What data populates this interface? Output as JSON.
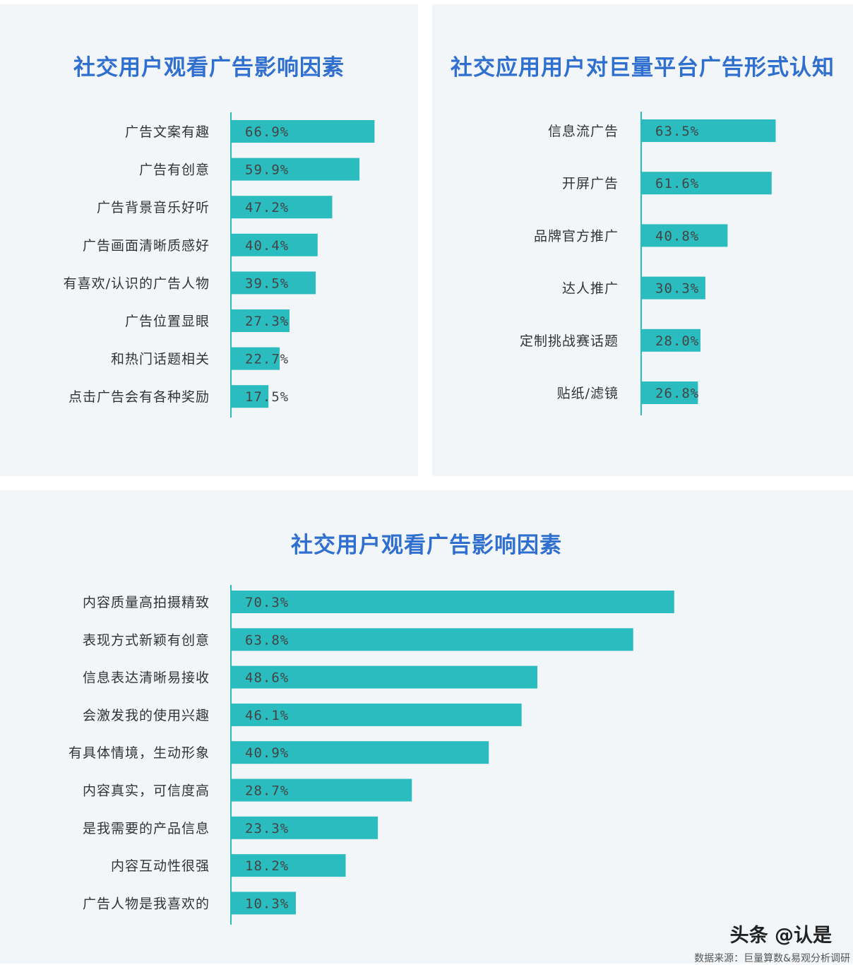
{
  "colors": {
    "bar": "#2bbcbf",
    "axis": "#2bbcbf",
    "title": "#2f6fcf"
  },
  "chart_data": [
    {
      "type": "bar",
      "orientation": "horizontal",
      "title": "社交用户观看广告影响因素",
      "categories": [
        "广告文案有趣",
        "广告有创意",
        "广告背景音乐好听",
        "广告画面清晰质感好",
        "有喜欢/认识的广告人物",
        "广告位置显眼",
        "和热门话题相关",
        "点击广告会有各种奖励"
      ],
      "values": [
        66.9,
        59.9,
        47.2,
        40.4,
        39.5,
        27.3,
        22.7,
        17.5
      ],
      "value_labels": [
        "66.9%",
        "59.9%",
        "47.2%",
        "40.4%",
        "39.5%",
        "27.3%",
        "22.7%",
        "17.5%"
      ],
      "xlim": [
        0,
        100
      ],
      "grid": false,
      "legend": "none"
    },
    {
      "type": "bar",
      "orientation": "horizontal",
      "title": "社交应用用户对巨量平台广告形式认知",
      "categories": [
        "信息流广告",
        "开屏广告",
        "品牌官方推广",
        "达人推广",
        "定制挑战赛话题",
        "贴纸/滤镜"
      ],
      "values": [
        63.5,
        61.6,
        40.8,
        30.3,
        28.0,
        26.8
      ],
      "value_labels": [
        "63.5%",
        "61.6%",
        "40.8%",
        "30.3%",
        "28.0%",
        "26.8%"
      ],
      "xlim": [
        0,
        100
      ],
      "grid": false,
      "legend": "none"
    },
    {
      "type": "bar",
      "orientation": "horizontal",
      "title": "社交用户观看广告影响因素",
      "categories": [
        "内容质量高拍摄精致",
        "表现方式新颖有创意",
        "信息表达清晰易接收",
        "会激发我的使用兴趣",
        "有具体情境，生动形象",
        "内容真实，可信度高",
        "是我需要的产品信息",
        "内容互动性很强",
        "广告人物是我喜欢的"
      ],
      "values": [
        70.3,
        63.8,
        48.6,
        46.1,
        40.9,
        28.7,
        23.3,
        18.2,
        10.3
      ],
      "value_labels": [
        "70.3%",
        "63.8%",
        "48.6%",
        "46.1%",
        "40.9%",
        "28.7%",
        "23.3%",
        "18.2%",
        "10.3%"
      ],
      "xlim": [
        0,
        100
      ],
      "grid": false,
      "legend": "none"
    }
  ],
  "footer": {
    "watermark": "头条 @认是",
    "source": "数据来源：巨量算数&易观分析调研"
  }
}
